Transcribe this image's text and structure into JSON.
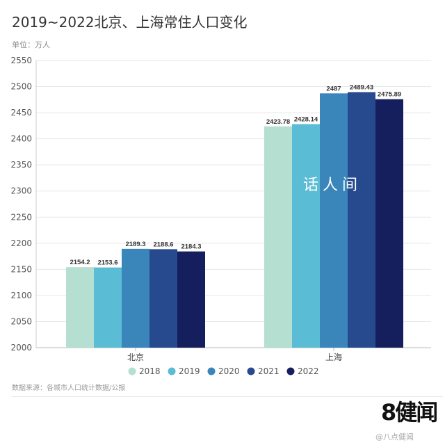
{
  "chart_data": {
    "type": "bar",
    "title": "2019~2022北京、上海常住人口变化",
    "ylabel": "单位：万人",
    "categories": [
      "北京",
      "上海"
    ],
    "ylim": [
      2000,
      2550
    ],
    "yticks": [
      2000,
      2050,
      2100,
      2150,
      2200,
      2250,
      2300,
      2350,
      2400,
      2450,
      2500,
      2550
    ],
    "grid": true,
    "legend_position": "bottom",
    "series": [
      {
        "name": "2018",
        "color": "#b5dfd0",
        "values": [
          2154.2,
          2423.78
        ],
        "labels": [
          "2154.2",
          "2423.78"
        ]
      },
      {
        "name": "2019",
        "color": "#5bbcd6",
        "values": [
          2153.6,
          2428.14
        ],
        "labels": [
          "2153.6",
          "2428.14"
        ]
      },
      {
        "name": "2020",
        "color": "#3a86bb",
        "values": [
          2189.3,
          2487
        ],
        "labels": [
          "2189.3",
          "2487"
        ]
      },
      {
        "name": "2021",
        "color": "#274a8f",
        "values": [
          2188.6,
          2489.43
        ],
        "labels": [
          "2188.6",
          "2489.43"
        ]
      },
      {
        "name": "2022",
        "color": "#161f5e",
        "values": [
          2184.3,
          2475.89
        ],
        "labels": [
          "2184.3",
          "2475.89"
        ]
      }
    ]
  },
  "source": "数据来源：各城市人口统计数据/公报",
  "logo": "8健闻",
  "watermark": "话人间",
  "watermark2": "@八点健闻"
}
